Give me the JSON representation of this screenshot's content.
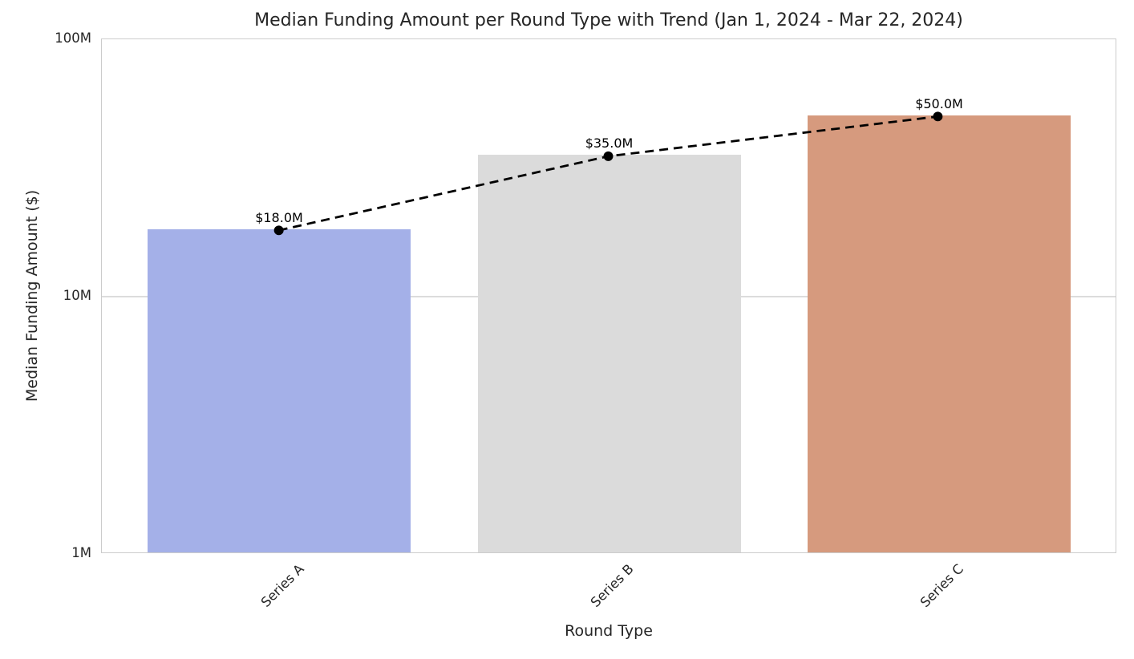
{
  "chart_data": {
    "type": "bar",
    "title": "Median Funding Amount per Round Type with Trend (Jan 1, 2024 - Mar 22, 2024)",
    "xlabel": "Round Type",
    "ylabel": "Median Funding Amount ($)",
    "categories": [
      "Series A",
      "Series B",
      "Series C"
    ],
    "values": [
      18000000,
      35000000,
      50000000
    ],
    "value_labels": [
      "$18.0M",
      "$35.0M",
      "$50.0M"
    ],
    "bar_colors": [
      "#a4b0e8",
      "#dbdbdb",
      "#d69a7e"
    ],
    "y_scale": "log",
    "ylim": [
      1000000,
      100000000
    ],
    "y_ticks": [
      {
        "label": "100M",
        "value": 100000000
      },
      {
        "label": "10M",
        "value": 10000000
      },
      {
        "label": "1M",
        "value": 1000000
      }
    ],
    "grid": true,
    "legend": false,
    "trend_line": {
      "style": "dashed",
      "color": "#000000",
      "marker": "circle",
      "values": [
        18000000,
        35000000,
        50000000
      ]
    }
  },
  "colors": {
    "grid": "#dcdcdc",
    "spine": "#cccccc",
    "text": "#262626",
    "annotation": "#000000",
    "background": "#ffffff"
  }
}
